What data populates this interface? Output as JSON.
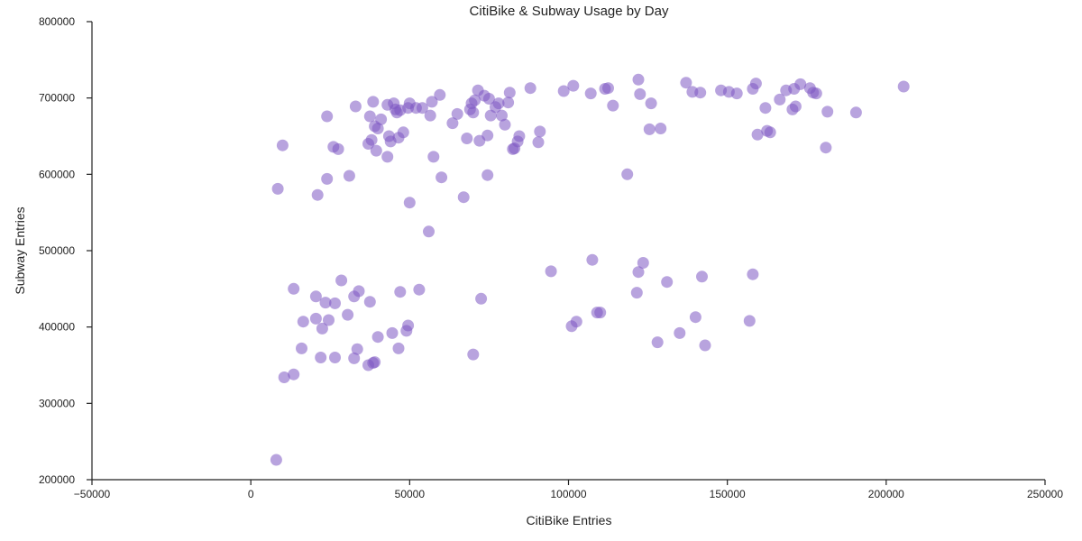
{
  "chart_data": {
    "type": "scatter",
    "title": "CitiBike & Subway Usage by Day",
    "xlabel": "CitiBike Entries",
    "ylabel": "Subway Entries",
    "xlim": [
      -50000,
      250000
    ],
    "ylim": [
      200000,
      800000
    ],
    "xticks": [
      -50000,
      0,
      50000,
      100000,
      150000,
      200000,
      250000
    ],
    "yticks": [
      200000,
      300000,
      400000,
      500000,
      600000,
      700000,
      800000
    ],
    "xtick_labels": [
      "−50000",
      "0",
      "50000",
      "100000",
      "150000",
      "200000",
      "250000"
    ],
    "ytick_labels": [
      "200000",
      "300000",
      "400000",
      "500000",
      "600000",
      "700000",
      "800000"
    ],
    "grid": false,
    "marker_color": "#7E57C2",
    "points": [
      [
        8500,
        581000
      ],
      [
        10000,
        638000
      ],
      [
        21000,
        573000
      ],
      [
        24000,
        594000
      ],
      [
        24000,
        676000
      ],
      [
        26000,
        636000
      ],
      [
        27500,
        633000
      ],
      [
        31000,
        598000
      ],
      [
        33000,
        689000
      ],
      [
        37000,
        640000
      ],
      [
        37500,
        676000
      ],
      [
        38000,
        645000
      ],
      [
        38500,
        695000
      ],
      [
        39000,
        663000
      ],
      [
        39500,
        631000
      ],
      [
        40000,
        660000
      ],
      [
        41000,
        672000
      ],
      [
        43000,
        691000
      ],
      [
        43500,
        650000
      ],
      [
        43000,
        623000
      ],
      [
        44000,
        643000
      ],
      [
        45000,
        693000
      ],
      [
        45500,
        685000
      ],
      [
        46000,
        681000
      ],
      [
        46500,
        648000
      ],
      [
        47000,
        684000
      ],
      [
        48000,
        655000
      ],
      [
        49500,
        687000
      ],
      [
        50000,
        693000
      ],
      [
        50000,
        563000
      ],
      [
        52000,
        687000
      ],
      [
        54000,
        687000
      ],
      [
        56500,
        677000
      ],
      [
        57000,
        695000
      ],
      [
        57500,
        623000
      ],
      [
        59500,
        704000
      ],
      [
        60000,
        596000
      ],
      [
        56000,
        525000
      ],
      [
        63500,
        667000
      ],
      [
        65000,
        679000
      ],
      [
        67000,
        570000
      ],
      [
        68000,
        647000
      ],
      [
        69000,
        685000
      ],
      [
        69500,
        693000
      ],
      [
        70000,
        681000
      ],
      [
        70500,
        697000
      ],
      [
        71500,
        710000
      ],
      [
        72000,
        644000
      ],
      [
        73500,
        703000
      ],
      [
        74500,
        599000
      ],
      [
        74500,
        651000
      ],
      [
        75000,
        699000
      ],
      [
        75500,
        677000
      ],
      [
        77000,
        688000
      ],
      [
        78000,
        693000
      ],
      [
        79000,
        677000
      ],
      [
        80000,
        665000
      ],
      [
        81000,
        694000
      ],
      [
        81500,
        707000
      ],
      [
        82500,
        633000
      ],
      [
        83000,
        634000
      ],
      [
        84000,
        643000
      ],
      [
        84500,
        650000
      ],
      [
        88000,
        713000
      ],
      [
        90500,
        642000
      ],
      [
        91000,
        656000
      ],
      [
        98500,
        709000
      ],
      [
        101500,
        716000
      ],
      [
        107000,
        706000
      ],
      [
        111500,
        712000
      ],
      [
        112500,
        713000
      ],
      [
        114000,
        690000
      ],
      [
        118500,
        600000
      ],
      [
        122000,
        724000
      ],
      [
        122500,
        705000
      ],
      [
        125500,
        659000
      ],
      [
        126000,
        693000
      ],
      [
        129000,
        660000
      ],
      [
        137000,
        720000
      ],
      [
        139000,
        708000
      ],
      [
        141500,
        707000
      ],
      [
        148000,
        710000
      ],
      [
        150500,
        708000
      ],
      [
        153000,
        706000
      ],
      [
        158000,
        712000
      ],
      [
        159000,
        719000
      ],
      [
        159500,
        652000
      ],
      [
        162000,
        687000
      ],
      [
        162500,
        657000
      ],
      [
        163500,
        655000
      ],
      [
        166500,
        698000
      ],
      [
        168500,
        710000
      ],
      [
        170500,
        685000
      ],
      [
        171000,
        712000
      ],
      [
        171500,
        689000
      ],
      [
        173000,
        718000
      ],
      [
        176000,
        713000
      ],
      [
        177000,
        707000
      ],
      [
        178000,
        706000
      ],
      [
        181000,
        635000
      ],
      [
        181500,
        682000
      ],
      [
        190500,
        681000
      ],
      [
        205500,
        715000
      ],
      [
        13500,
        450000
      ],
      [
        16500,
        407000
      ],
      [
        16000,
        372000
      ],
      [
        20500,
        440000
      ],
      [
        20500,
        411000
      ],
      [
        22000,
        360000
      ],
      [
        22500,
        398000
      ],
      [
        23500,
        432000
      ],
      [
        24500,
        409000
      ],
      [
        26500,
        431000
      ],
      [
        26500,
        360000
      ],
      [
        28500,
        461000
      ],
      [
        30500,
        416000
      ],
      [
        32500,
        440000
      ],
      [
        32500,
        359000
      ],
      [
        33500,
        371000
      ],
      [
        34000,
        447000
      ],
      [
        37500,
        433000
      ],
      [
        37000,
        350000
      ],
      [
        38500,
        353000
      ],
      [
        39000,
        354000
      ],
      [
        40000,
        387000
      ],
      [
        44500,
        392000
      ],
      [
        47000,
        446000
      ],
      [
        46500,
        372000
      ],
      [
        49000,
        395000
      ],
      [
        49500,
        402000
      ],
      [
        53000,
        449000
      ],
      [
        70000,
        364000
      ],
      [
        72500,
        437000
      ],
      [
        94500,
        473000
      ],
      [
        101000,
        401000
      ],
      [
        102500,
        407000
      ],
      [
        107500,
        488000
      ],
      [
        109000,
        419000
      ],
      [
        110000,
        419000
      ],
      [
        121500,
        445000
      ],
      [
        122000,
        472000
      ],
      [
        123500,
        484000
      ],
      [
        128000,
        380000
      ],
      [
        131000,
        459000
      ],
      [
        135000,
        392000
      ],
      [
        140000,
        413000
      ],
      [
        142000,
        466000
      ],
      [
        143000,
        376000
      ],
      [
        157000,
        408000
      ],
      [
        158000,
        469000
      ],
      [
        8000,
        226000
      ],
      [
        10500,
        334000
      ],
      [
        13500,
        338000
      ]
    ]
  }
}
